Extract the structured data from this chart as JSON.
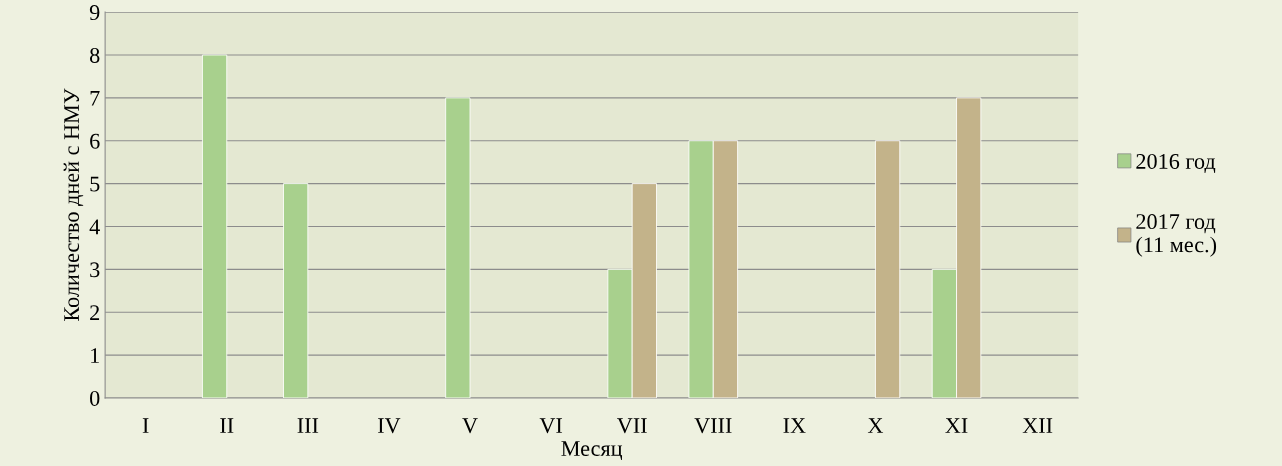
{
  "chart_data": {
    "type": "bar",
    "categories": [
      "I",
      "II",
      "III",
      "IV",
      "V",
      "VI",
      "VII",
      "VIII",
      "IX",
      "X",
      "XI",
      "XII"
    ],
    "series": [
      {
        "name": "2016 год",
        "color": "#a8d08d",
        "values": [
          null,
          8,
          5,
          null,
          7,
          null,
          3,
          6,
          null,
          null,
          3,
          null
        ]
      },
      {
        "name": "2017 год\n(11 мес.)",
        "color": "#c3b38a",
        "values": [
          null,
          null,
          null,
          null,
          null,
          null,
          5,
          6,
          null,
          6,
          7,
          null
        ]
      }
    ],
    "xlabel": "Месяц",
    "ylabel": "Количество дней с НМУ",
    "ylim": [
      0,
      9
    ],
    "yticks": [
      0,
      1,
      2,
      3,
      4,
      5,
      6,
      7,
      8,
      9
    ],
    "grid": "y",
    "legend": "right"
  }
}
